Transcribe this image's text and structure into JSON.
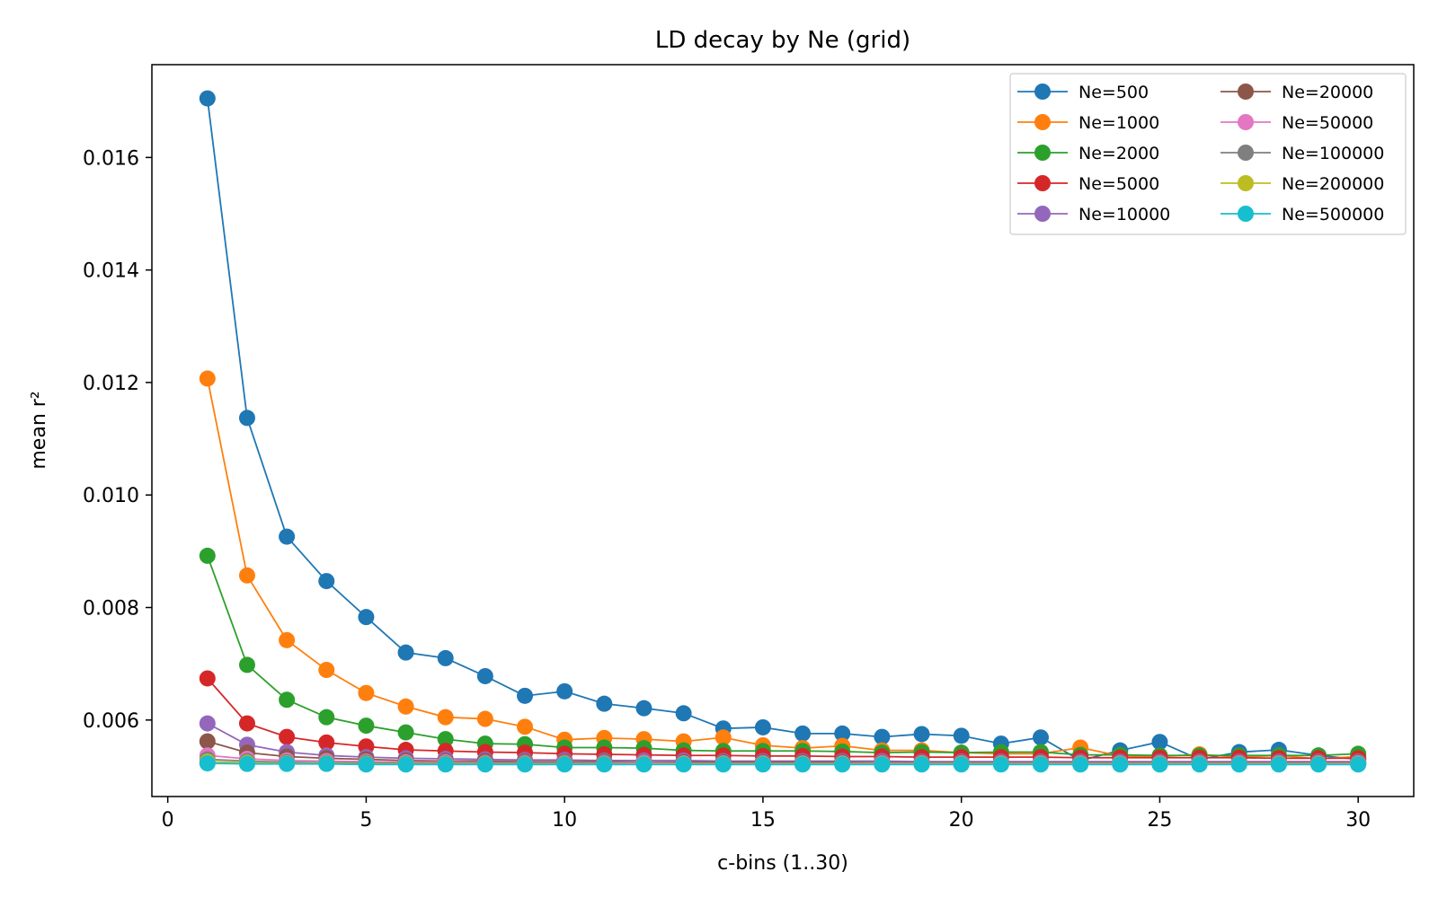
{
  "chart_data": {
    "type": "line",
    "title": "LD decay by Ne (grid)",
    "xlabel": "c-bins (1..30)",
    "ylabel": "mean r²",
    "xlim": [
      -0.4,
      31.4
    ],
    "ylim": [
      0.00464,
      0.01765
    ],
    "xticks": [
      0,
      5,
      10,
      15,
      20,
      25,
      30
    ],
    "yticks": [
      0.006,
      0.008,
      0.01,
      0.012,
      0.014,
      0.016
    ],
    "ytick_labels": [
      "0.006",
      "0.008",
      "0.010",
      "0.012",
      "0.014",
      "0.016"
    ],
    "grid": false,
    "legend_position": "top-right",
    "legend_columns": 2,
    "x": [
      1,
      2,
      3,
      4,
      5,
      6,
      7,
      8,
      9,
      10,
      11,
      12,
      13,
      14,
      15,
      16,
      17,
      18,
      19,
      20,
      21,
      22,
      23,
      24,
      25,
      26,
      27,
      28,
      29,
      30
    ],
    "series": [
      {
        "name": "Ne=500",
        "color": "#1f77b4",
        "values": [
          0.01705,
          0.01137,
          0.00926,
          0.00847,
          0.00783,
          0.0072,
          0.0071,
          0.00678,
          0.00643,
          0.00651,
          0.00629,
          0.00621,
          0.00612,
          0.00585,
          0.00587,
          0.00576,
          0.00576,
          0.0057,
          0.00575,
          0.00572,
          0.00558,
          0.00569,
          0.00528,
          0.00546,
          0.00561,
          0.0053,
          0.00543,
          0.00547,
          0.00537,
          0.0053
        ]
      },
      {
        "name": "Ne=1000",
        "color": "#ff7f0e",
        "values": [
          0.01207,
          0.00857,
          0.00742,
          0.00689,
          0.00648,
          0.00624,
          0.00605,
          0.00602,
          0.00588,
          0.00565,
          0.00568,
          0.00566,
          0.00562,
          0.00569,
          0.00555,
          0.0055,
          0.00554,
          0.00546,
          0.00546,
          0.00542,
          0.0054,
          0.0054,
          0.00551,
          0.00536,
          0.00535,
          0.00539,
          0.00534,
          0.00537,
          0.00531,
          0.00535
        ]
      },
      {
        "name": "Ne=2000",
        "color": "#2ca02c",
        "values": [
          0.00892,
          0.00698,
          0.00636,
          0.00605,
          0.0059,
          0.00578,
          0.00566,
          0.00558,
          0.00557,
          0.00551,
          0.00551,
          0.0055,
          0.00546,
          0.00545,
          0.00545,
          0.00545,
          0.00544,
          0.00542,
          0.00543,
          0.00542,
          0.00543,
          0.00543,
          0.00538,
          0.00538,
          0.00537,
          0.00537,
          0.00537,
          0.00537,
          0.00537,
          0.0054
        ]
      },
      {
        "name": "Ne=5000",
        "color": "#d62728",
        "values": [
          0.00674,
          0.00594,
          0.0057,
          0.0056,
          0.00553,
          0.00547,
          0.00545,
          0.00543,
          0.00542,
          0.0054,
          0.00539,
          0.00538,
          0.00537,
          0.00537,
          0.00536,
          0.00536,
          0.00535,
          0.00535,
          0.00534,
          0.00534,
          0.00534,
          0.00534,
          0.00533,
          0.00533,
          0.00533,
          0.00533,
          0.00533,
          0.00532,
          0.00532,
          0.00532
        ]
      },
      {
        "name": "Ne=10000",
        "color": "#9467bd",
        "values": [
          0.00594,
          0.00556,
          0.00543,
          0.00537,
          0.00534,
          0.00532,
          0.00531,
          0.0053,
          0.00529,
          0.00529,
          0.00528,
          0.00528,
          0.00528,
          0.00527,
          0.00527,
          0.00527,
          0.00527,
          0.00527,
          0.00526,
          0.00526,
          0.00526,
          0.00526,
          0.00526,
          0.00526,
          0.00526,
          0.00526,
          0.00526,
          0.00526,
          0.00526,
          0.00526
        ]
      },
      {
        "name": "Ne=20000",
        "color": "#8c564b",
        "values": [
          0.00562,
          0.00542,
          0.00535,
          0.00532,
          0.0053,
          0.00528,
          0.00527,
          0.00527,
          0.00526,
          0.00526,
          0.00526,
          0.00525,
          0.00525,
          0.00525,
          0.00525,
          0.00525,
          0.00525,
          0.00524,
          0.00524,
          0.00524,
          0.00524,
          0.00524,
          0.00524,
          0.00524,
          0.00524,
          0.00524,
          0.00524,
          0.00524,
          0.00524,
          0.00524
        ]
      },
      {
        "name": "Ne=50000",
        "color": "#e377c2",
        "values": [
          0.00537,
          0.00531,
          0.00528,
          0.00527,
          0.00526,
          0.00525,
          0.00525,
          0.00524,
          0.00524,
          0.00524,
          0.00524,
          0.00524,
          0.00523,
          0.00523,
          0.00523,
          0.00523,
          0.00523,
          0.00523,
          0.00523,
          0.00523,
          0.00523,
          0.00523,
          0.00523,
          0.00523,
          0.00523,
          0.00523,
          0.00523,
          0.00523,
          0.00523,
          0.00523
        ]
      },
      {
        "name": "Ne=100000",
        "color": "#7f7f7f",
        "values": [
          0.0053,
          0.00527,
          0.00525,
          0.00524,
          0.00524,
          0.00523,
          0.00523,
          0.00523,
          0.00523,
          0.00523,
          0.00523,
          0.00522,
          0.00522,
          0.00522,
          0.00522,
          0.00522,
          0.00522,
          0.00522,
          0.00522,
          0.00522,
          0.00522,
          0.00522,
          0.00522,
          0.00522,
          0.00522,
          0.00522,
          0.00522,
          0.00522,
          0.00522,
          0.00522
        ]
      },
      {
        "name": "Ne=200000",
        "color": "#bcbd22",
        "values": [
          0.00526,
          0.00524,
          0.00523,
          0.00523,
          0.00522,
          0.00522,
          0.00522,
          0.00522,
          0.00522,
          0.00522,
          0.00522,
          0.00522,
          0.00522,
          0.00522,
          0.00522,
          0.00522,
          0.00522,
          0.00522,
          0.00522,
          0.00522,
          0.00522,
          0.00522,
          0.00522,
          0.00522,
          0.00522,
          0.00522,
          0.00522,
          0.00522,
          0.00522,
          0.00522
        ]
      },
      {
        "name": "Ne=500000",
        "color": "#17becf",
        "values": [
          0.00523,
          0.00522,
          0.00522,
          0.00522,
          0.00521,
          0.00521,
          0.00521,
          0.00521,
          0.00521,
          0.00521,
          0.00521,
          0.00521,
          0.00521,
          0.00521,
          0.00521,
          0.00521,
          0.00521,
          0.00521,
          0.00521,
          0.00521,
          0.00521,
          0.00521,
          0.00521,
          0.00521,
          0.00521,
          0.00521,
          0.00521,
          0.00521,
          0.00521,
          0.00521
        ]
      }
    ]
  }
}
